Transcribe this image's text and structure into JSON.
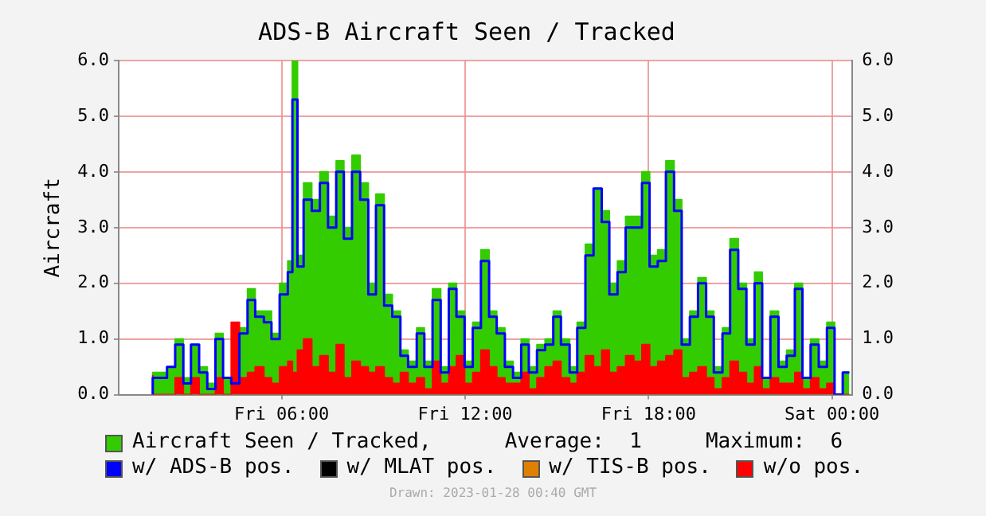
{
  "chart_data": {
    "type": "step",
    "title": "ADS-B Aircraft Seen / Tracked",
    "ylabel": "Aircraft",
    "x": [
      "2023-01-27T01:47",
      "2023-01-27T02:15",
      "2023-01-27T02:31",
      "2023-01-27T02:47",
      "2023-01-27T03:02",
      "2023-01-27T03:18",
      "2023-01-27T03:34",
      "2023-01-27T03:50",
      "2023-01-27T04:05",
      "2023-01-27T04:21",
      "2023-01-27T04:37",
      "2023-01-27T04:53",
      "2023-01-27T05:08",
      "2023-01-27T05:25",
      "2023-01-27T05:40",
      "2023-01-27T05:56",
      "2023-01-27T06:12",
      "2023-01-27T06:21",
      "2023-01-27T06:31",
      "2023-01-27T06:43",
      "2023-01-27T06:59",
      "2023-01-27T07:15",
      "2023-01-27T07:31",
      "2023-01-27T07:47",
      "2023-01-27T08:02",
      "2023-01-27T08:18",
      "2023-01-27T08:34",
      "2023-01-27T08:50",
      "2023-01-27T09:05",
      "2023-01-27T09:21",
      "2023-01-27T09:37",
      "2023-01-27T09:53",
      "2023-01-27T10:08",
      "2023-01-27T10:25",
      "2023-01-27T10:40",
      "2023-01-27T10:56",
      "2023-01-27T11:12",
      "2023-01-27T11:28",
      "2023-01-27T11:43",
      "2023-01-27T11:59",
      "2023-01-27T12:15",
      "2023-01-27T12:31",
      "2023-01-27T12:47",
      "2023-01-27T13:02",
      "2023-01-27T13:18",
      "2023-01-27T13:34",
      "2023-01-27T13:50",
      "2023-01-27T14:05",
      "2023-01-27T14:21",
      "2023-01-27T14:37",
      "2023-01-27T14:53",
      "2023-01-27T15:08",
      "2023-01-27T15:25",
      "2023-01-27T15:40",
      "2023-01-27T15:56",
      "2023-01-27T16:12",
      "2023-01-27T16:28",
      "2023-01-27T16:43",
      "2023-01-27T16:59",
      "2023-01-27T17:15",
      "2023-01-27T17:31",
      "2023-01-27T17:47",
      "2023-01-27T18:02",
      "2023-01-27T18:18",
      "2023-01-27T18:34",
      "2023-01-27T18:50",
      "2023-01-27T19:05",
      "2023-01-27T19:21",
      "2023-01-27T19:37",
      "2023-01-27T19:53",
      "2023-01-27T20:08",
      "2023-01-27T20:25",
      "2023-01-27T20:40",
      "2023-01-27T20:56",
      "2023-01-27T21:12",
      "2023-01-27T21:28",
      "2023-01-27T21:43",
      "2023-01-27T21:59",
      "2023-01-27T22:15",
      "2023-01-27T22:31",
      "2023-01-27T22:47",
      "2023-01-27T23:02",
      "2023-01-27T23:18",
      "2023-01-27T23:34",
      "2023-01-27T23:50",
      "2023-01-28T00:05",
      "2023-01-28T00:21",
      "2023-01-28T00:34"
    ],
    "series": [
      {
        "name": "Aircraft Seen / Tracked,",
        "type": "area",
        "color": "#33cc00",
        "values": [
          0,
          0.4,
          0.5,
          1.0,
          0.3,
          0.9,
          0.5,
          0.2,
          1.1,
          0.3,
          0.3,
          1.2,
          1.9,
          1.5,
          1.5,
          1.1,
          2.0,
          2.4,
          6.0,
          2.5,
          3.8,
          3.5,
          4.0,
          3.2,
          4.2,
          3.0,
          4.3,
          3.8,
          2.0,
          3.6,
          1.8,
          1.5,
          0.8,
          0.6,
          1.2,
          0.6,
          1.9,
          0.5,
          2.0,
          1.5,
          0.6,
          1.3,
          2.6,
          1.5,
          1.2,
          0.6,
          0.4,
          1.0,
          0.5,
          0.9,
          1.0,
          1.5,
          1.0,
          0.5,
          1.3,
          2.7,
          3.7,
          3.3,
          2.0,
          2.4,
          3.2,
          3.2,
          4.0,
          2.5,
          2.6,
          4.2,
          3.5,
          1.0,
          1.5,
          2.1,
          1.5,
          0.5,
          1.2,
          2.8,
          2.0,
          1.0,
          2.2,
          0.3,
          1.5,
          0.6,
          0.8,
          2.0,
          0.3,
          1.0,
          0.6,
          1.3,
          0,
          0.4
        ]
      },
      {
        "name": "w/ ADS-B pos.",
        "color": "#0000ff",
        "values": [
          0,
          0.3,
          0.5,
          0.9,
          0.2,
          0.9,
          0.4,
          0.1,
          1.0,
          0.3,
          0.2,
          1.1,
          1.7,
          1.4,
          1.3,
          1.0,
          1.8,
          2.2,
          5.3,
          2.3,
          3.5,
          3.3,
          3.8,
          3.0,
          4.0,
          2.8,
          4.0,
          3.5,
          1.8,
          3.4,
          1.6,
          1.4,
          0.7,
          0.5,
          1.1,
          0.5,
          1.7,
          0.4,
          1.9,
          1.4,
          0.5,
          1.2,
          2.4,
          1.4,
          1.1,
          0.5,
          0.3,
          0.9,
          0.4,
          0.8,
          0.9,
          1.4,
          0.9,
          0.4,
          1.2,
          2.5,
          3.7,
          3.1,
          1.8,
          2.2,
          3.0,
          3.0,
          3.8,
          2.3,
          2.4,
          4.0,
          3.3,
          0.9,
          1.4,
          2.0,
          1.4,
          0.4,
          1.1,
          2.6,
          1.9,
          0.9,
          2.0,
          0.3,
          1.4,
          0.5,
          0.7,
          1.9,
          0.3,
          0.9,
          0.5,
          1.2,
          0,
          0.4
        ]
      },
      {
        "name": "w/ MLAT pos.",
        "color": "#000000",
        "values": [
          null,
          null,
          null,
          null,
          null,
          null,
          null,
          null,
          null,
          null,
          null,
          null,
          null,
          null,
          null,
          null,
          null,
          null,
          null,
          null,
          null,
          null,
          null,
          null,
          null,
          null,
          null,
          null,
          null,
          null,
          null,
          null,
          null,
          null,
          null,
          null,
          null,
          null,
          null,
          null,
          null,
          null,
          null,
          null,
          null,
          null,
          null,
          null,
          null,
          null,
          null,
          null,
          null,
          null,
          null,
          null,
          null,
          null,
          null,
          null,
          null,
          null,
          null,
          null,
          null,
          null,
          null,
          null,
          null,
          null,
          null,
          null,
          null,
          null,
          null,
          null,
          null,
          null,
          null,
          null,
          null,
          null,
          null,
          null,
          null,
          null,
          null,
          null
        ]
      },
      {
        "name": "w/ TIS-B pos.",
        "color": "#e08000",
        "values": [
          null,
          null,
          null,
          null,
          null,
          null,
          null,
          null,
          null,
          null,
          null,
          null,
          null,
          null,
          null,
          null,
          null,
          null,
          null,
          null,
          null,
          null,
          null,
          null,
          null,
          null,
          null,
          null,
          null,
          null,
          null,
          null,
          null,
          null,
          null,
          null,
          null,
          null,
          null,
          null,
          null,
          null,
          null,
          null,
          null,
          null,
          null,
          null,
          null,
          null,
          null,
          null,
          null,
          null,
          null,
          null,
          null,
          null,
          null,
          null,
          null,
          null,
          null,
          null,
          null,
          null,
          null,
          null,
          null,
          null,
          null,
          null,
          null,
          null,
          null,
          null,
          null,
          null,
          null,
          null,
          null,
          null,
          null,
          null,
          null,
          null,
          null,
          null
        ]
      },
      {
        "name": "w/o pos.",
        "type": "area",
        "color": "#ff0000",
        "values": [
          0.35,
          0,
          0,
          0.3,
          0,
          0.3,
          0,
          0,
          0.3,
          0,
          1.3,
          0.3,
          0.4,
          0.5,
          0.3,
          0.2,
          0.5,
          0.6,
          0.4,
          0.8,
          1.0,
          0.5,
          0.7,
          0.4,
          0.9,
          0.3,
          0.6,
          0.5,
          0.4,
          0.5,
          0.3,
          0.2,
          0.4,
          0.2,
          0.3,
          0.1,
          0.6,
          0.2,
          0.5,
          0.7,
          0.2,
          0.4,
          0.8,
          0.5,
          0.3,
          0.2,
          0.2,
          0.4,
          0.1,
          0.3,
          0.5,
          0.6,
          0.3,
          0.2,
          0.4,
          0.7,
          0.5,
          0.8,
          0.4,
          0.5,
          0.7,
          0.6,
          0.9,
          0.5,
          0.6,
          0.7,
          0.8,
          0.3,
          0.4,
          0.5,
          0.3,
          0.1,
          0.3,
          0.6,
          0.4,
          0.2,
          0.5,
          0.1,
          0.3,
          0.2,
          0.2,
          0.4,
          0.1,
          0.3,
          0.1,
          0.2,
          0,
          0
        ]
      }
    ],
    "xlim": [
      "2023-01-27T00:40",
      "2023-01-28T00:40"
    ],
    "xticks": [
      {
        "value": "2023-01-27T06:00",
        "label": "Fri 06:00"
      },
      {
        "value": "2023-01-27T12:00",
        "label": "Fri 12:00"
      },
      {
        "value": "2023-01-27T18:00",
        "label": "Fri 18:00"
      },
      {
        "value": "2023-01-28T00:00",
        "label": "Sat 00:00"
      }
    ],
    "ylim": [
      0,
      6
    ],
    "yticks": [
      {
        "value": 0,
        "label": "0.0"
      },
      {
        "value": 1,
        "label": "1.0"
      },
      {
        "value": 2,
        "label": "2.0"
      },
      {
        "value": 3,
        "label": "3.0"
      },
      {
        "value": 4,
        "label": "4.0"
      },
      {
        "value": 5,
        "label": "5.0"
      },
      {
        "value": 6,
        "label": "6.0"
      }
    ],
    "y2lim": [
      0,
      6
    ],
    "y2ticks": [
      {
        "value": 0,
        "label": "0.0"
      },
      {
        "value": 1,
        "label": "1.0"
      },
      {
        "value": 2,
        "label": "2.0"
      },
      {
        "value": 3,
        "label": "3.0"
      },
      {
        "value": 4,
        "label": "4.0"
      },
      {
        "value": 5,
        "label": "5.0"
      },
      {
        "value": 6,
        "label": "6.0"
      }
    ],
    "grid": true,
    "legend": "bottom",
    "annotations": [
      "Average:  1",
      "Maximum:  6",
      "Drawn: 2023-01-28 00:40 GMT"
    ]
  }
}
